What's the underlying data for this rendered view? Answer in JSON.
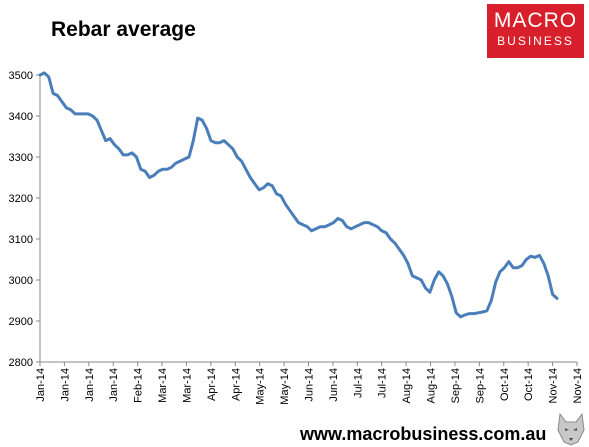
{
  "header": {
    "title": "Rebar average"
  },
  "logo": {
    "line1": "MACRO",
    "line2": "BUSINESS"
  },
  "footer": {
    "url": "www.macrobusiness.com.au"
  },
  "colors": {
    "series": "#4a7ebb",
    "brand": "#d7202b",
    "axis": "#888888"
  },
  "chart_data": {
    "type": "line",
    "title": "Rebar average",
    "xlabel": "",
    "ylabel": "",
    "ylim": [
      2800,
      3500
    ],
    "yticks": [
      2800,
      2900,
      3000,
      3100,
      3200,
      3300,
      3400,
      3500
    ],
    "xticks": [
      "Jan-14",
      "Jan-14",
      "Jan-14",
      "Jan-14",
      "Feb-14",
      "Mar-14",
      "Mar-14",
      "Apr-14",
      "Apr-14",
      "May-14",
      "May-14",
      "Jun-14",
      "Jun-14",
      "Jul-14",
      "Jul-14",
      "Aug-14",
      "Aug-14",
      "Sep-14",
      "Sep-14",
      "Oct-14",
      "Oct-14",
      "Nov-14",
      "Nov-14"
    ],
    "grid": false,
    "legend": "none",
    "series": [
      {
        "values": [
          3500,
          3505,
          3495,
          3455,
          3450,
          3435,
          3420,
          3415,
          3405,
          3405,
          3405,
          3405,
          3400,
          3390,
          3365,
          3340,
          3345,
          3330,
          3320,
          3305,
          3305,
          3310,
          3300,
          3270,
          3265,
          3250,
          3255,
          3265,
          3270,
          3270,
          3275,
          3285,
          3290,
          3295,
          3300,
          3340,
          3395,
          3390,
          3370,
          3340,
          3335,
          3335,
          3340,
          3330,
          3320,
          3300,
          3290,
          3270,
          3250,
          3235,
          3220,
          3225,
          3235,
          3230,
          3210,
          3205,
          3185,
          3170,
          3155,
          3140,
          3135,
          3130,
          3120,
          3125,
          3130,
          3130,
          3135,
          3140,
          3150,
          3145,
          3130,
          3125,
          3130,
          3135,
          3140,
          3140,
          3135,
          3130,
          3120,
          3115,
          3100,
          3090,
          3075,
          3060,
          3040,
          3010,
          3005,
          3000,
          2980,
          2970,
          3000,
          3020,
          3010,
          2990,
          2960,
          2920,
          2910,
          2915,
          2918,
          2918,
          2920,
          2922,
          2925,
          2950,
          2995,
          3020,
          3030,
          3045,
          3030,
          3030,
          3035,
          3050,
          3058,
          3055,
          3060,
          3040,
          3010,
          2965,
          2955
        ]
      }
    ]
  }
}
